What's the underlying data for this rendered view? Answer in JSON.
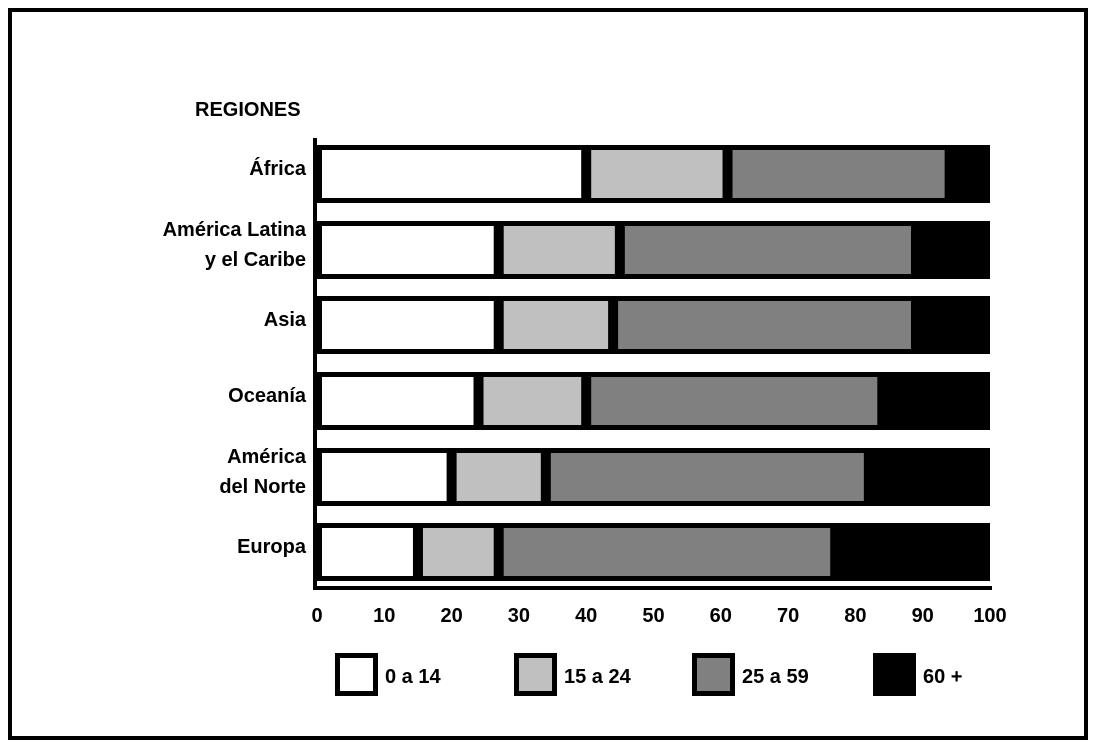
{
  "chart_data": {
    "type": "bar",
    "stacked": true,
    "orientation": "horizontal",
    "title": "REGIONES",
    "categories": [
      [
        "África"
      ],
      [
        "América Latina",
        "y el Caribe"
      ],
      [
        "Asia"
      ],
      [
        "Oceanía"
      ],
      [
        "América",
        "del Norte"
      ],
      [
        "Europa"
      ]
    ],
    "series": [
      {
        "name": "0 a 14",
        "color": "#ffffff",
        "values": [
          40,
          27,
          27,
          24,
          20,
          15
        ]
      },
      {
        "name": "15 a 24",
        "color": "#c0c0c0",
        "values": [
          21,
          18,
          17,
          16,
          14,
          12
        ]
      },
      {
        "name": "25 a 59",
        "color": "#808080",
        "values": [
          33,
          44,
          45,
          44,
          48,
          50
        ]
      },
      {
        "name": "60 +",
        "color": "#000000",
        "values": [
          6,
          11,
          11,
          16,
          18,
          23
        ]
      }
    ],
    "xlim": [
      0,
      100
    ],
    "xticks": [
      "0",
      "10",
      "20",
      "30",
      "40",
      "50",
      "60",
      "70",
      "80",
      "90",
      "100"
    ],
    "legend_position": "bottom"
  }
}
